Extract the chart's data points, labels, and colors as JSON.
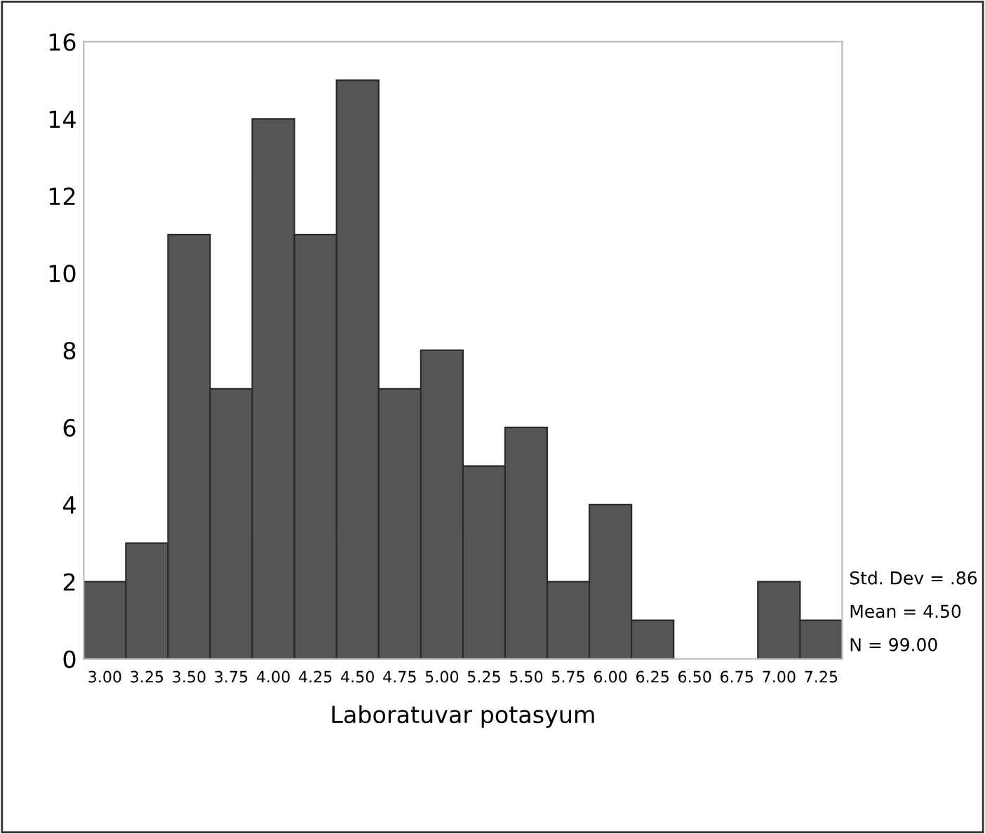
{
  "chart_data": {
    "type": "histogram",
    "xlabel": "Laboratuvar potasyum",
    "bins": [
      2.875,
      3.125,
      3.375,
      3.625,
      3.875,
      4.125,
      4.375,
      4.625,
      4.875,
      5.125,
      5.375,
      5.625,
      5.875,
      6.125,
      6.375,
      6.625,
      6.875,
      7.125,
      7.375
    ],
    "values": [
      2,
      3,
      11,
      7,
      14,
      11,
      15,
      7,
      8,
      5,
      6,
      2,
      4,
      1,
      0,
      0,
      2,
      1
    ],
    "color": "#555555",
    "xlim": [
      2.875,
      7.375
    ],
    "xticks": [
      {
        "value": 3.0,
        "label": "3.00"
      },
      {
        "value": 3.25,
        "label": "3.25"
      },
      {
        "value": 3.5,
        "label": "3.50"
      },
      {
        "value": 3.75,
        "label": "3.75"
      },
      {
        "value": 4.0,
        "label": "4.00"
      },
      {
        "value": 4.25,
        "label": "4.25"
      },
      {
        "value": 4.5,
        "label": "4.50"
      },
      {
        "value": 4.75,
        "label": "4.75"
      },
      {
        "value": 5.0,
        "label": "5.00"
      },
      {
        "value": 5.25,
        "label": "5.25"
      },
      {
        "value": 5.5,
        "label": "5.50"
      },
      {
        "value": 5.75,
        "label": "5.75"
      },
      {
        "value": 6.0,
        "label": "6.00"
      },
      {
        "value": 6.25,
        "label": "6.25"
      },
      {
        "value": 6.5,
        "label": "6.50"
      },
      {
        "value": 6.75,
        "label": "6.75"
      },
      {
        "value": 7.0,
        "label": "7.00"
      },
      {
        "value": 7.25,
        "label": "7.25"
      }
    ],
    "ylim": [
      0,
      16
    ],
    "yticks": [
      0,
      2,
      4,
      6,
      8,
      10,
      12,
      14,
      16
    ],
    "grid": false,
    "legend": false,
    "annotations": [
      "Std. Dev = .86",
      "Mean = 4.50",
      "N = 99.00"
    ]
  }
}
